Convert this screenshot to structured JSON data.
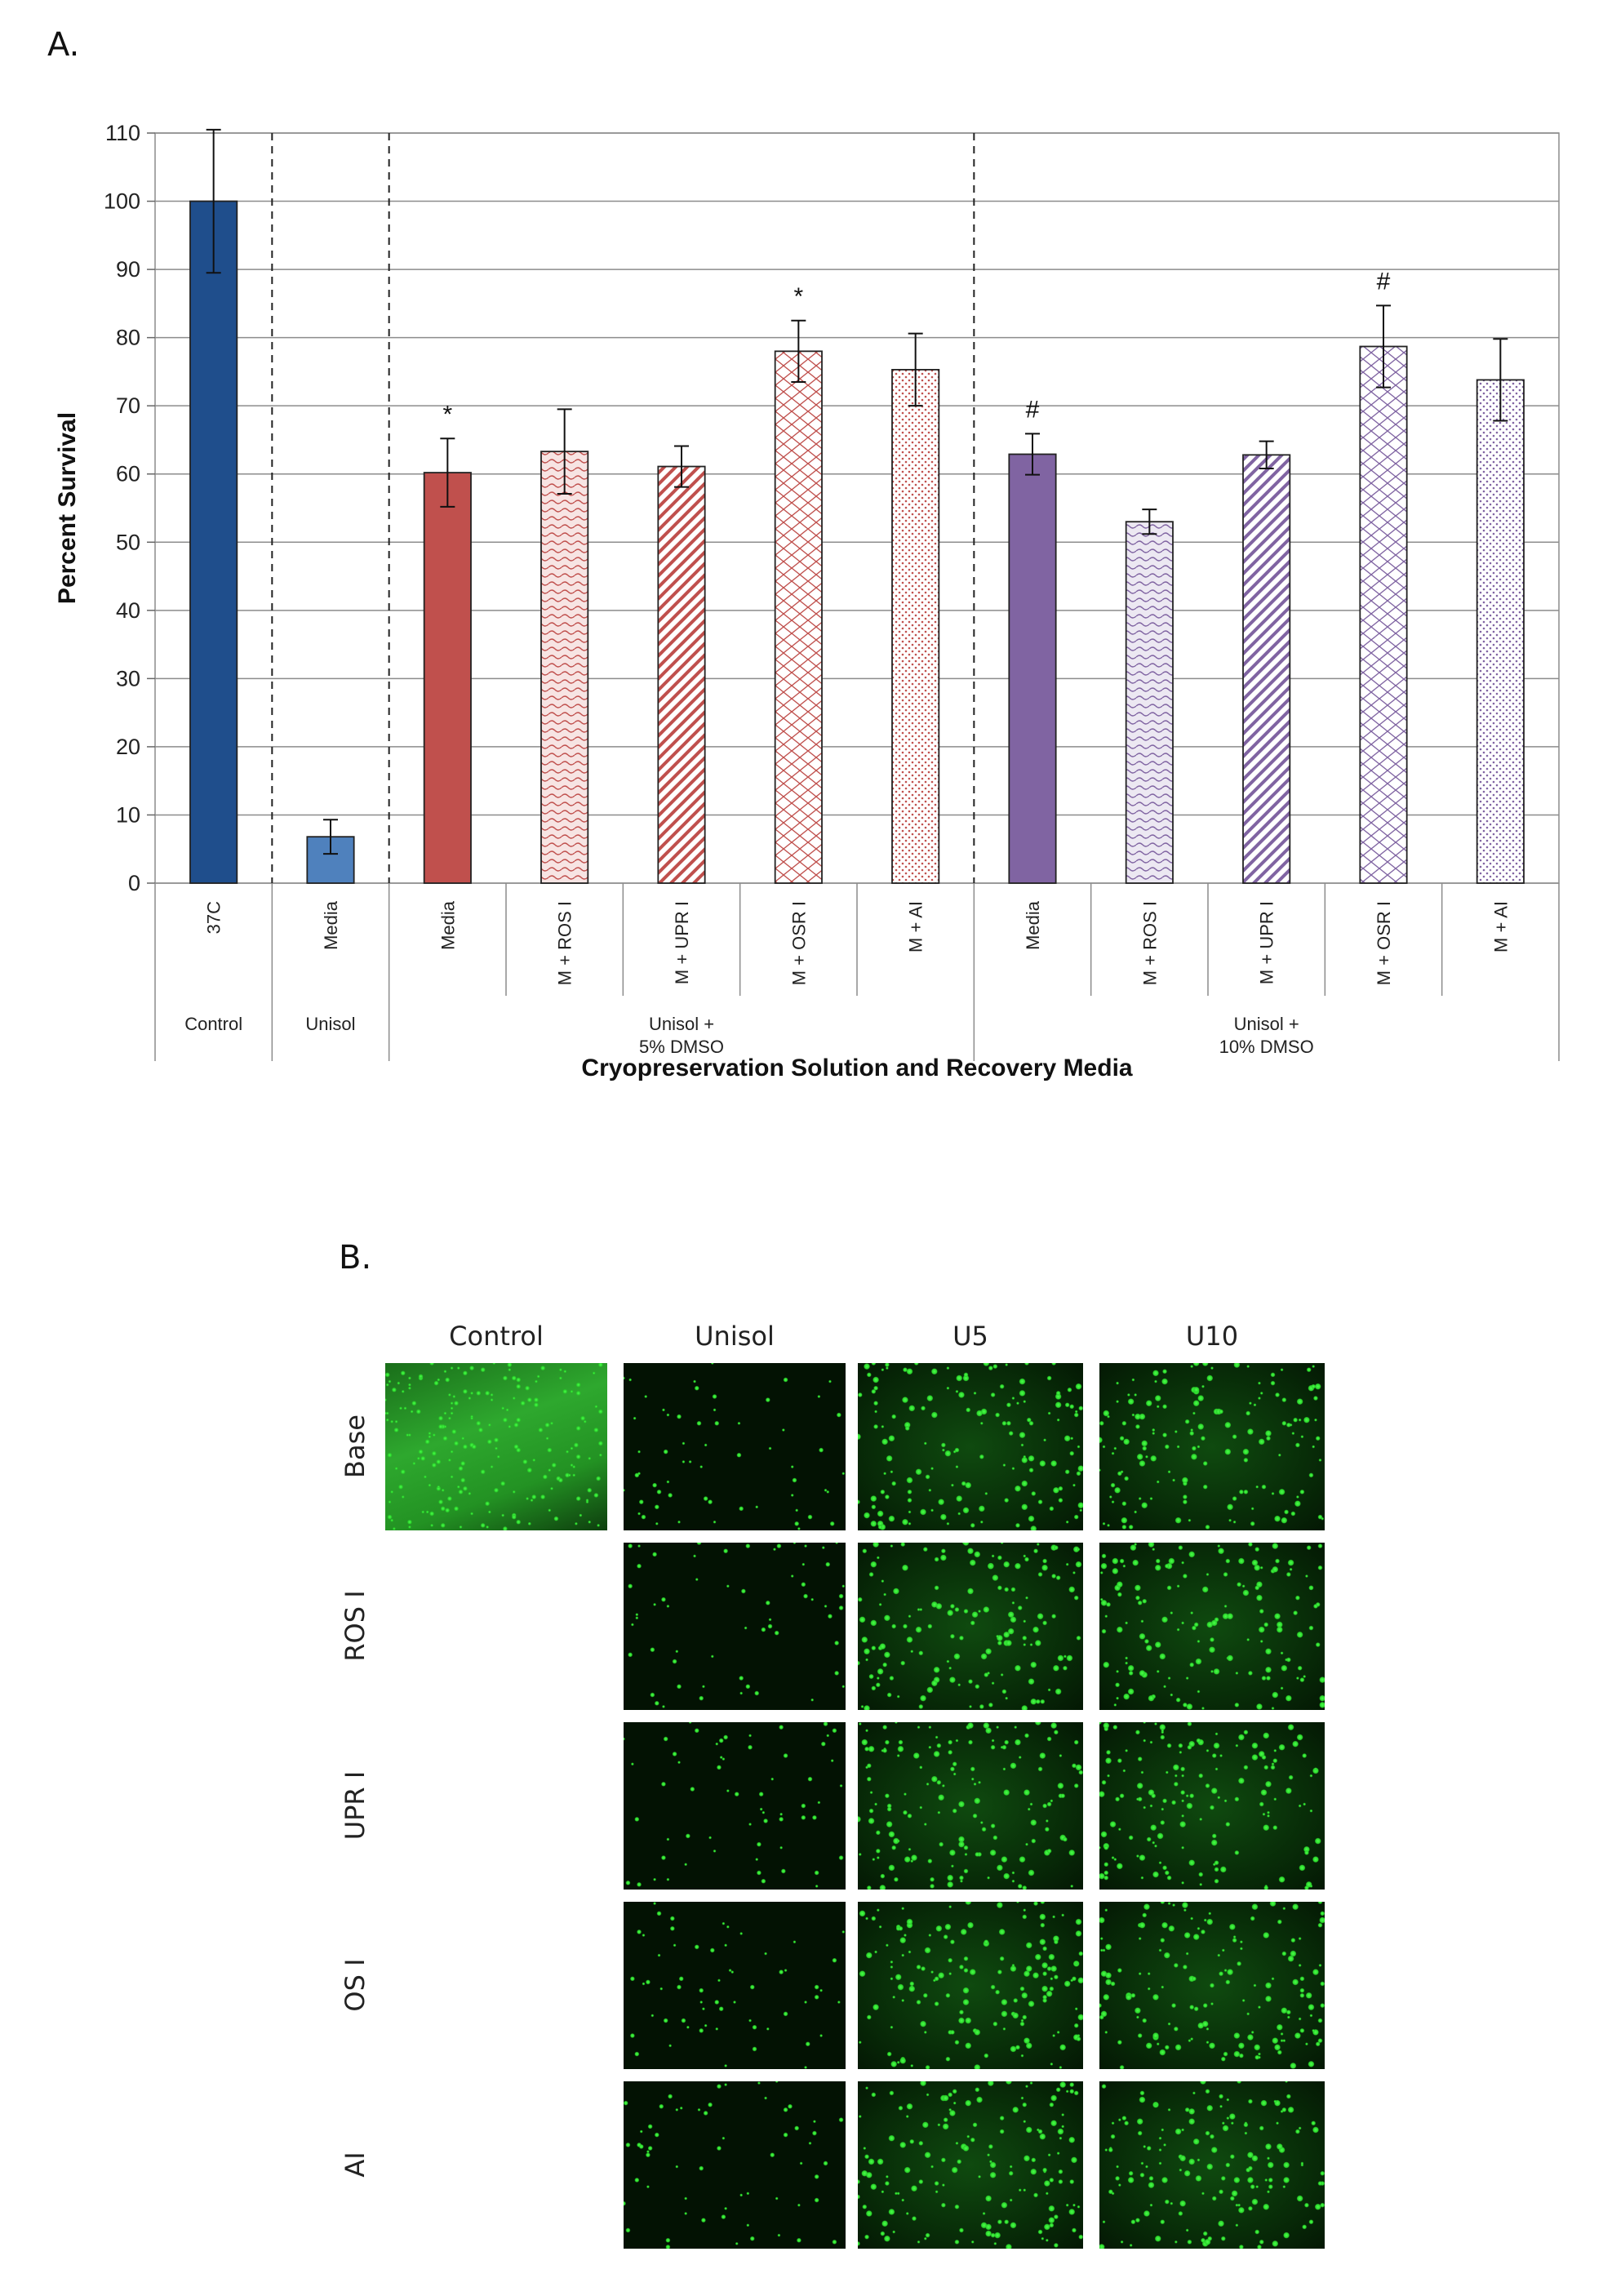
{
  "panel_a_label": "A.",
  "panel_b_label": "B.",
  "chart_data": {
    "type": "bar",
    "xlabel": "Cryopreservation Solution and Recovery Media",
    "ylabel": "Percent Survival",
    "ylim": [
      0,
      110
    ],
    "yticks": [
      0,
      10,
      20,
      30,
      40,
      50,
      60,
      70,
      80,
      90,
      100,
      110
    ],
    "grid": true,
    "categories": [
      "37C",
      "Media",
      "Media",
      "M + ROS I",
      "M + UPR I",
      "M + OSR I",
      "M + AI",
      "Media",
      "M + ROS I",
      "M + UPR I",
      "M + OSR I",
      "M + AI"
    ],
    "values": [
      100,
      6.8,
      60.2,
      63.3,
      61.1,
      78.0,
      75.3,
      62.9,
      53.0,
      62.8,
      78.7,
      73.8
    ],
    "errors": [
      10.5,
      2.5,
      5.0,
      6.2,
      3.0,
      4.5,
      5.3,
      3.0,
      1.8,
      2.0,
      6.0,
      6.0
    ],
    "annotations": [
      "",
      "",
      "*",
      "",
      "",
      "*",
      "",
      "#",
      "",
      "",
      "#",
      ""
    ],
    "colors": [
      "#1f4e8c",
      "#4f81bd",
      "#c0504d",
      "#c0504d",
      "#c0504d",
      "#c0504d",
      "#c0504d",
      "#8064a2",
      "#8064a2",
      "#8064a2",
      "#8064a2",
      "#8064a2"
    ],
    "fill_styles": [
      "solid",
      "solid",
      "solid",
      "wave",
      "diagonal",
      "brick",
      "dots",
      "solid",
      "wave",
      "diagonal",
      "brick",
      "dots"
    ],
    "groups": [
      {
        "label": "Control",
        "start": 0,
        "end": 0
      },
      {
        "label": "Unisol",
        "start": 1,
        "end": 1
      },
      {
        "label": "Unisol +\n5% DMSO",
        "start": 2,
        "end": 6
      },
      {
        "label": "Unisol +\n10% DMSO",
        "start": 7,
        "end": 11
      }
    ]
  },
  "micrographs": {
    "columns": [
      "Control",
      "Unisol",
      "U5",
      "U10"
    ],
    "rows": [
      "Base",
      "ROS I",
      "UPR I",
      "OS I",
      "AI"
    ]
  }
}
